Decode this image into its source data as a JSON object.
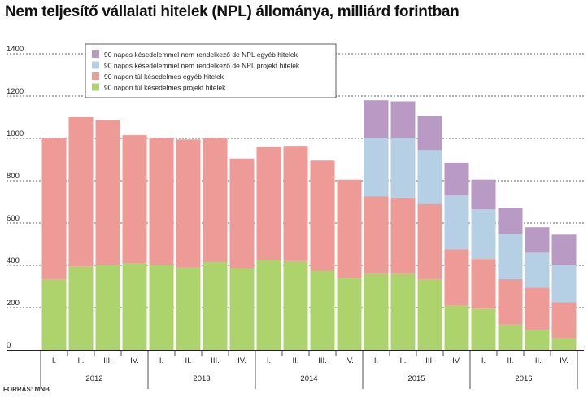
{
  "title": "Nem teljesítő vállalati hitelek (NPL) állománya, milliárd forintban",
  "source": "FORRÁS: MNB",
  "colors": {
    "npl_egyeb": "#b89ac4",
    "npl_projekt": "#b5cfe4",
    "t90_egyeb": "#ee9a97",
    "t90_projekt": "#acd36c"
  },
  "chart_data": {
    "type": "bar",
    "stacked": true,
    "title": "Nem teljesítő vállalati hitelek (NPL) állománya, milliárd forintban",
    "xlabel": "",
    "ylabel": "",
    "ylim": [
      0,
      1400
    ],
    "yticks": [
      0,
      200,
      400,
      600,
      800,
      1000,
      1200,
      1400
    ],
    "grid": true,
    "legend_position": "top-left",
    "categories": [
      "I.",
      "II.",
      "III.",
      "IV.",
      "I.",
      "II.",
      "III.",
      "IV.",
      "I.",
      "II.",
      "III.",
      "IV.",
      "I.",
      "II.",
      "III.",
      "IV.",
      "I.",
      "II.",
      "III.",
      "IV."
    ],
    "years": [
      {
        "label": "2012",
        "start": 0,
        "end": 3
      },
      {
        "label": "2013",
        "start": 4,
        "end": 7
      },
      {
        "label": "2014",
        "start": 8,
        "end": 11
      },
      {
        "label": "2015",
        "start": 12,
        "end": 15
      },
      {
        "label": "2016",
        "start": 16,
        "end": 19
      }
    ],
    "series": [
      {
        "name": "90 napon túl késedelmes projekt hitelek",
        "color": "#acd36c",
        "values": [
          335,
          395,
          400,
          410,
          400,
          390,
          415,
          385,
          425,
          420,
          375,
          340,
          360,
          360,
          335,
          210,
          195,
          120,
          95,
          55
        ]
      },
      {
        "name": "90 napon túl késedelmes egyéb hitelek",
        "color": "#ee9a97",
        "values": [
          665,
          705,
          685,
          605,
          600,
          605,
          585,
          520,
          535,
          545,
          520,
          465,
          365,
          360,
          355,
          265,
          235,
          215,
          200,
          170
        ]
      },
      {
        "name": "90 napos késedelemmel nem rendelkező de NPL projekt hitelek",
        "color": "#b5cfe4",
        "values": [
          0,
          0,
          0,
          0,
          0,
          0,
          0,
          0,
          0,
          0,
          0,
          0,
          275,
          280,
          255,
          255,
          235,
          215,
          165,
          175
        ]
      },
      {
        "name": "90 napos késedelemmel nem rendelkező de NPL egyéb hitelek",
        "color": "#b89ac4",
        "values": [
          0,
          0,
          0,
          0,
          0,
          0,
          0,
          0,
          0,
          0,
          0,
          0,
          180,
          175,
          160,
          155,
          140,
          120,
          120,
          145
        ]
      }
    ],
    "legend_order": [
      "90 napos késedelemmel nem rendelkező de NPL egyéb hitelek",
      "90 napos késedelemmel nem rendelkező de NPL projekt hitelek",
      "90 napon túl késedelmes egyéb hitelek",
      "90 napon túl késedelmes projekt hitelek"
    ]
  }
}
